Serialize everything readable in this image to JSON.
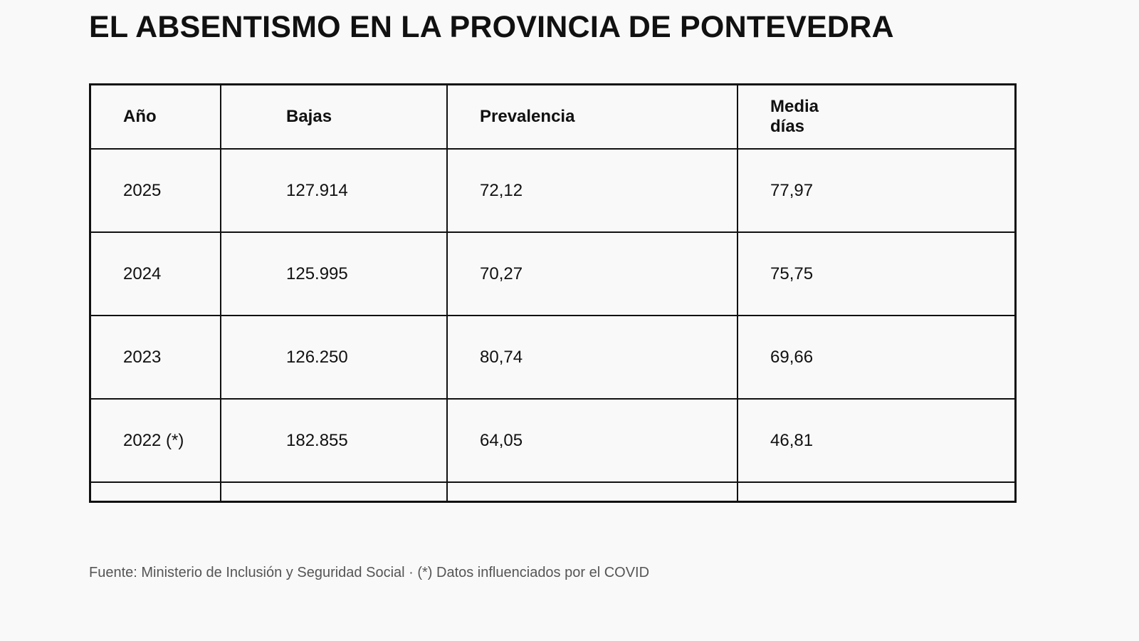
{
  "title": "EL ABSENTISMO EN LA PROVINCIA DE PONTEVEDRA",
  "table": {
    "headers": [
      "Año",
      "Bajas",
      "Prevalencia",
      "Media días"
    ],
    "rows": [
      [
        "2025",
        "127.914",
        "72,12",
        "77,97"
      ],
      [
        "2024",
        "125.995",
        "70,27",
        "75,75"
      ],
      [
        "2023",
        "126.250",
        "80,74",
        "69,66"
      ],
      [
        "2022 (*)",
        "182.855",
        "64,05",
        "46,81"
      ]
    ]
  },
  "footer": "Fuente: Ministerio de Inclusión y Seguridad Social · (*) Datos influenciados por el COVID"
}
